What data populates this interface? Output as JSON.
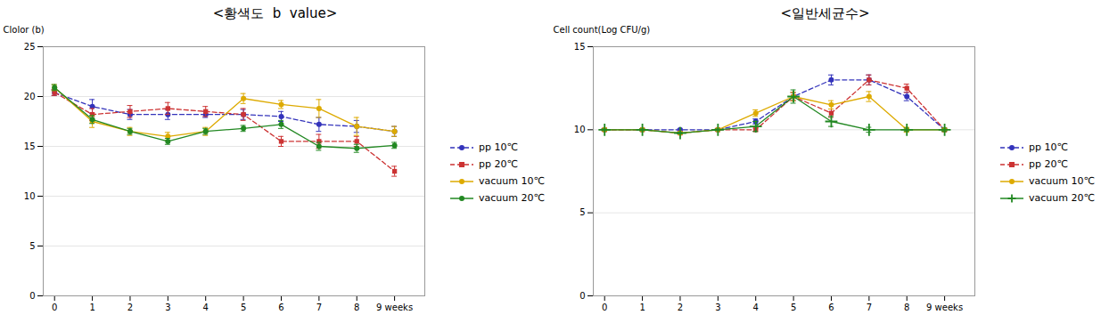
{
  "chart_data": [
    {
      "type": "line",
      "title": "<황색도  b  value>",
      "y_label": "Clolor (b)",
      "x": [
        0,
        1,
        2,
        3,
        4,
        5,
        6,
        7,
        8,
        9
      ],
      "xlim": [
        -0.3,
        9.8
      ],
      "ylim": [
        0,
        25
      ],
      "xticks": [
        0,
        1,
        2,
        3,
        4,
        5,
        6,
        7,
        8,
        {
          "value": 9,
          "label": "9 weeks"
        }
      ],
      "yticks": [
        0,
        5,
        10,
        15,
        20,
        25
      ],
      "grid": "y",
      "legend": "right",
      "series": [
        {
          "name": "pp 10℃",
          "color": "#3333bb",
          "line_style": "dashed",
          "marker": "circle",
          "values": [
            20.4,
            19.0,
            18.2,
            18.2,
            18.2,
            18.2,
            18.0,
            17.2,
            17.0,
            16.5
          ],
          "yerr": [
            0.3,
            0.7,
            0.5,
            0.5,
            0.3,
            0.5,
            0.5,
            0.7,
            0.6,
            0.5
          ]
        },
        {
          "name": "pp 20℃",
          "color": "#cc3333",
          "line_style": "dashed",
          "marker": "square",
          "values": [
            20.4,
            18.2,
            18.5,
            18.8,
            18.5,
            18.2,
            15.5,
            15.5,
            15.5,
            12.5
          ],
          "yerr": [
            0.3,
            0.6,
            0.6,
            0.6,
            0.5,
            0.6,
            0.5,
            0.7,
            0.5,
            0.5
          ]
        },
        {
          "name": "vacuum 10℃",
          "color": "#ddaa00",
          "line_style": "solid",
          "marker": "circle",
          "values": [
            20.9,
            17.5,
            16.5,
            16.0,
            16.5,
            19.8,
            19.2,
            18.8,
            17.0,
            16.5
          ],
          "yerr": [
            0.3,
            0.6,
            0.4,
            0.4,
            0.4,
            0.5,
            0.4,
            0.9,
            0.9,
            0.5
          ]
        },
        {
          "name": "vacuum 20℃",
          "color": "#228822",
          "line_style": "solid",
          "marker": "circle",
          "values": [
            20.9,
            17.7,
            16.5,
            15.5,
            16.5,
            16.8,
            17.2,
            15.0,
            14.8,
            15.1
          ],
          "yerr": [
            0.3,
            0.4,
            0.3,
            0.3,
            0.3,
            0.3,
            0.4,
            0.4,
            0.4,
            0.3
          ]
        }
      ]
    },
    {
      "type": "line",
      "title": "<일반세균수>",
      "y_label": "Cell count(Log CFU/g)",
      "x": [
        0,
        1,
        2,
        3,
        4,
        5,
        6,
        7,
        8,
        9
      ],
      "xlim": [
        -0.3,
        9.8
      ],
      "ylim": [
        0,
        15
      ],
      "xticks": [
        0,
        1,
        2,
        3,
        4,
        5,
        6,
        7,
        8,
        {
          "value": 9,
          "label": "9 weeks"
        }
      ],
      "yticks": [
        0,
        5,
        10,
        15
      ],
      "grid": "y",
      "legend": "right",
      "series": [
        {
          "name": "pp 10℃",
          "color": "#3333bb",
          "line_style": "dashed",
          "marker": "circle",
          "values": [
            10.0,
            10.0,
            10.0,
            10.0,
            10.5,
            12.0,
            13.0,
            13.0,
            12.0,
            10.0
          ],
          "yerr": [
            0.05,
            0.05,
            0.05,
            0.05,
            0.15,
            0.25,
            0.3,
            0.3,
            0.25,
            0.1
          ]
        },
        {
          "name": "pp 20℃",
          "color": "#cc3333",
          "line_style": "dashed",
          "marker": "square",
          "values": [
            10.0,
            10.0,
            9.8,
            10.0,
            10.0,
            12.0,
            11.0,
            13.0,
            12.5,
            10.0
          ],
          "yerr": [
            0.05,
            0.05,
            0.05,
            0.05,
            0.1,
            0.25,
            0.25,
            0.3,
            0.25,
            0.1
          ]
        },
        {
          "name": "vacuum 10℃",
          "color": "#ddaa00",
          "line_style": "solid",
          "marker": "circle",
          "values": [
            10.0,
            10.0,
            9.8,
            10.0,
            11.0,
            12.0,
            11.5,
            12.0,
            10.0,
            10.0
          ],
          "yerr": [
            0.05,
            0.05,
            0.05,
            0.05,
            0.2,
            0.25,
            0.25,
            0.3,
            0.15,
            0.1
          ]
        },
        {
          "name": "vacuum 20℃",
          "color": "#228822",
          "line_style": "solid",
          "marker": "plus",
          "values": [
            10.0,
            10.0,
            9.8,
            10.0,
            10.2,
            12.0,
            10.5,
            10.0,
            10.0,
            10.0
          ],
          "yerr": [
            0.05,
            0.05,
            0.05,
            0.05,
            0.3,
            0.4,
            0.3,
            0.15,
            0.1,
            0.1
          ]
        }
      ]
    }
  ]
}
